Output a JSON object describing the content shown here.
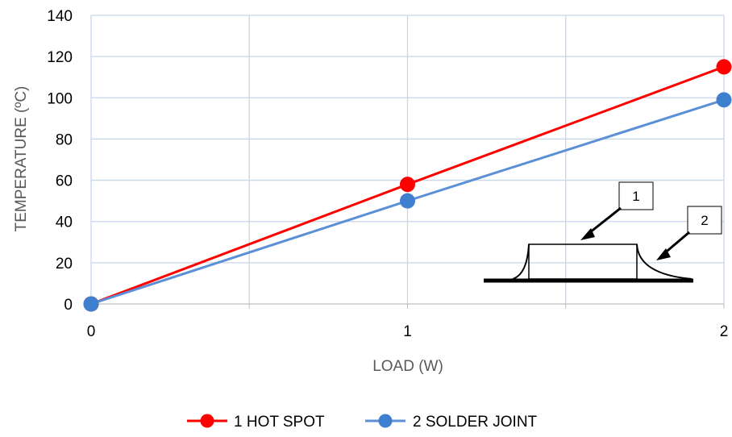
{
  "chart_data": {
    "type": "line",
    "title": "",
    "xlabel": "LOAD (W)",
    "ylabel": "TEMPERATURE (ºC)",
    "x": [
      0,
      1,
      2
    ],
    "xlim": [
      0,
      2
    ],
    "ylim": [
      0,
      140
    ],
    "x_ticks": [
      "0",
      "1",
      "2"
    ],
    "y_ticks": [
      "0",
      "20",
      "40",
      "60",
      "80",
      "100",
      "120",
      "140"
    ],
    "grid": true,
    "legend_position": "bottom",
    "series": [
      {
        "name": "1 HOT SPOT",
        "values": [
          0,
          58,
          115
        ],
        "color": "#ff0000"
      },
      {
        "name": "2 SOLDER JOINT",
        "values": [
          0,
          50,
          99
        ],
        "color": "#5b8fd6"
      }
    ],
    "annotations": [
      {
        "label": "1",
        "target": "hot-spot"
      },
      {
        "label": "2",
        "target": "solder-joint"
      }
    ]
  },
  "legend": {
    "hot_spot": "1 HOT SPOT",
    "solder_joint": "2 SOLDER JOINT"
  },
  "callouts": {
    "one": "1",
    "two": "2"
  },
  "axes": {
    "xlabel": "LOAD (W)",
    "ylabel": "TEMPERATURE (ºC)"
  }
}
